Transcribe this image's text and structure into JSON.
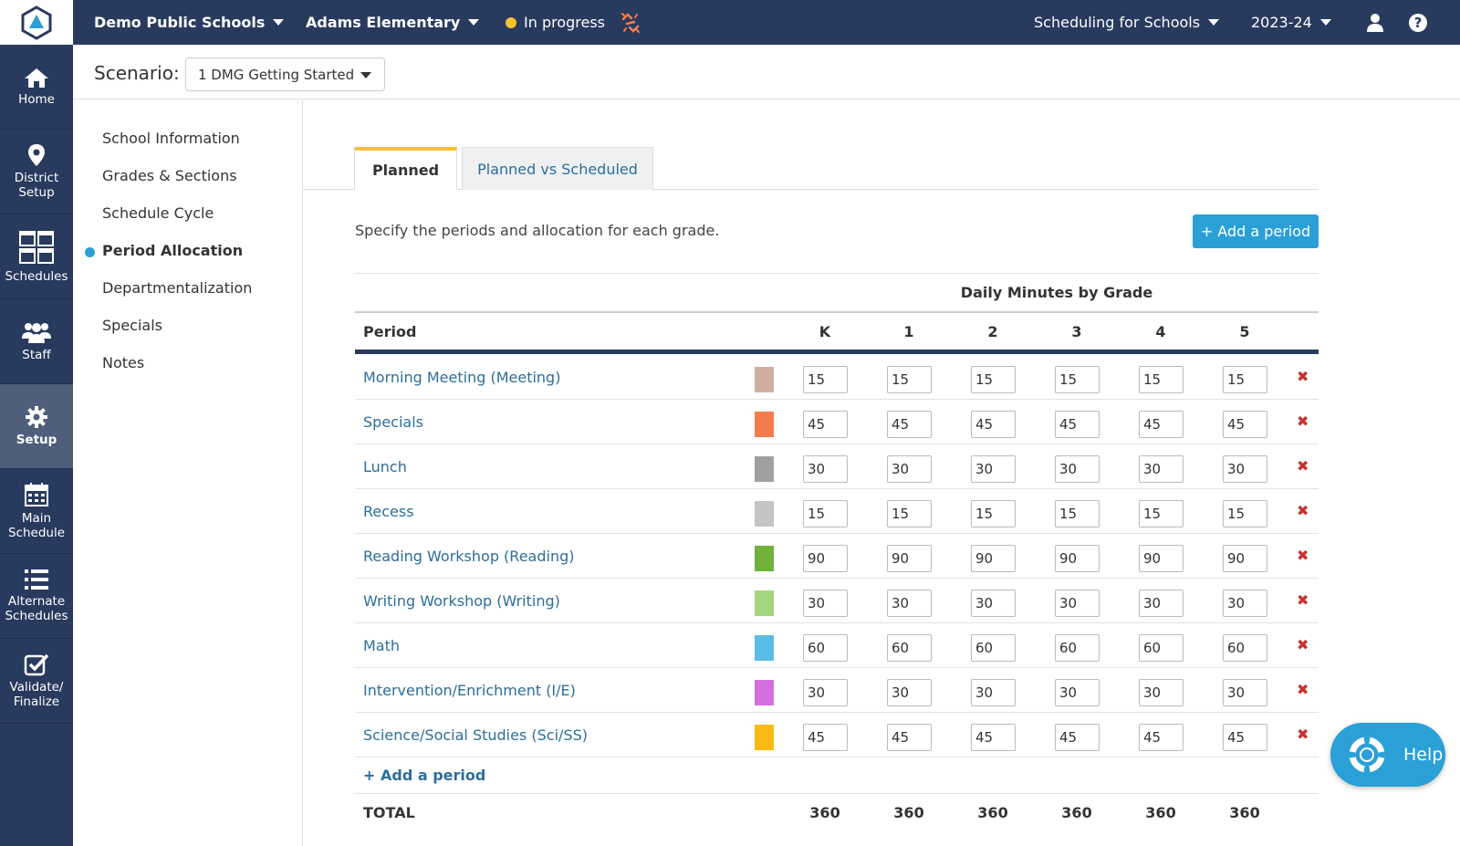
{
  "topbar": {
    "district": "Demo Public Schools",
    "school": "Adams Elementary",
    "status": "In progress",
    "product": "Scheduling for Schools",
    "year": "2023-24"
  },
  "sidenav": {
    "items": [
      {
        "label1": "Home",
        "label2": "",
        "icon": "home-icon"
      },
      {
        "label1": "District",
        "label2": "Setup",
        "icon": "map-pin-icon"
      },
      {
        "label1": "Schedules",
        "label2": "",
        "icon": "calendars-icon"
      },
      {
        "label1": "Staff",
        "label2": "",
        "icon": "staff-icon"
      },
      {
        "label1": "Setup",
        "label2": "",
        "icon": "gear-icon"
      },
      {
        "label1": "Main",
        "label2": "Schedule",
        "icon": "calendar-icon"
      },
      {
        "label1": "Alternate",
        "label2": "Schedules",
        "icon": "list-icon"
      },
      {
        "label1": "Validate/",
        "label2": "Finalize",
        "icon": "check-icon"
      }
    ],
    "active": "Setup"
  },
  "scenario": {
    "label": "Scenario:",
    "value": "1 DMG Getting Started"
  },
  "subnav": {
    "items": [
      "School Information",
      "Grades & Sections",
      "Schedule Cycle",
      "Period Allocation",
      "Departmentalization",
      "Specials",
      "Notes"
    ],
    "active": "Period Allocation"
  },
  "tabs": {
    "planned": "Planned",
    "pvs": "Planned vs Scheduled"
  },
  "description": "Specify the periods and allocation for each grade.",
  "add_button": "+ Add a period",
  "table": {
    "group_header": "Daily Minutes by Grade",
    "period_header": "Period",
    "grades": [
      "K",
      "1",
      "2",
      "3",
      "4",
      "5"
    ],
    "rows": [
      {
        "name": "Morning Meeting (Meeting)",
        "color": "#cfaea0",
        "values": [
          "15",
          "15",
          "15",
          "15",
          "15",
          "15"
        ]
      },
      {
        "name": "Specials",
        "color": "#f47c4c",
        "values": [
          "45",
          "45",
          "45",
          "45",
          "45",
          "45"
        ]
      },
      {
        "name": "Lunch",
        "color": "#a0a0a0",
        "values": [
          "30",
          "30",
          "30",
          "30",
          "30",
          "30"
        ]
      },
      {
        "name": "Recess",
        "color": "#c4c4c4",
        "values": [
          "15",
          "15",
          "15",
          "15",
          "15",
          "15"
        ]
      },
      {
        "name": "Reading Workshop (Reading)",
        "color": "#6fb13a",
        "values": [
          "90",
          "90",
          "90",
          "90",
          "90",
          "90"
        ]
      },
      {
        "name": "Writing Workshop (Writing)",
        "color": "#a5d67e",
        "values": [
          "30",
          "30",
          "30",
          "30",
          "30",
          "30"
        ]
      },
      {
        "name": "Math",
        "color": "#5bbde5",
        "values": [
          "60",
          "60",
          "60",
          "60",
          "60",
          "60"
        ]
      },
      {
        "name": "Intervention/Enrichment (I/E)",
        "color": "#d46fe0",
        "values": [
          "30",
          "30",
          "30",
          "30",
          "30",
          "30"
        ]
      },
      {
        "name": "Science/Social Studies (Sci/SS)",
        "color": "#fbb913",
        "values": [
          "45",
          "45",
          "45",
          "45",
          "45",
          "45"
        ]
      }
    ],
    "delete_symbol": "✖",
    "add_row": "+ Add a period",
    "total_label": "TOTAL",
    "totals": [
      "360",
      "360",
      "360",
      "360",
      "360",
      "360"
    ]
  },
  "help": {
    "label": "Help"
  }
}
